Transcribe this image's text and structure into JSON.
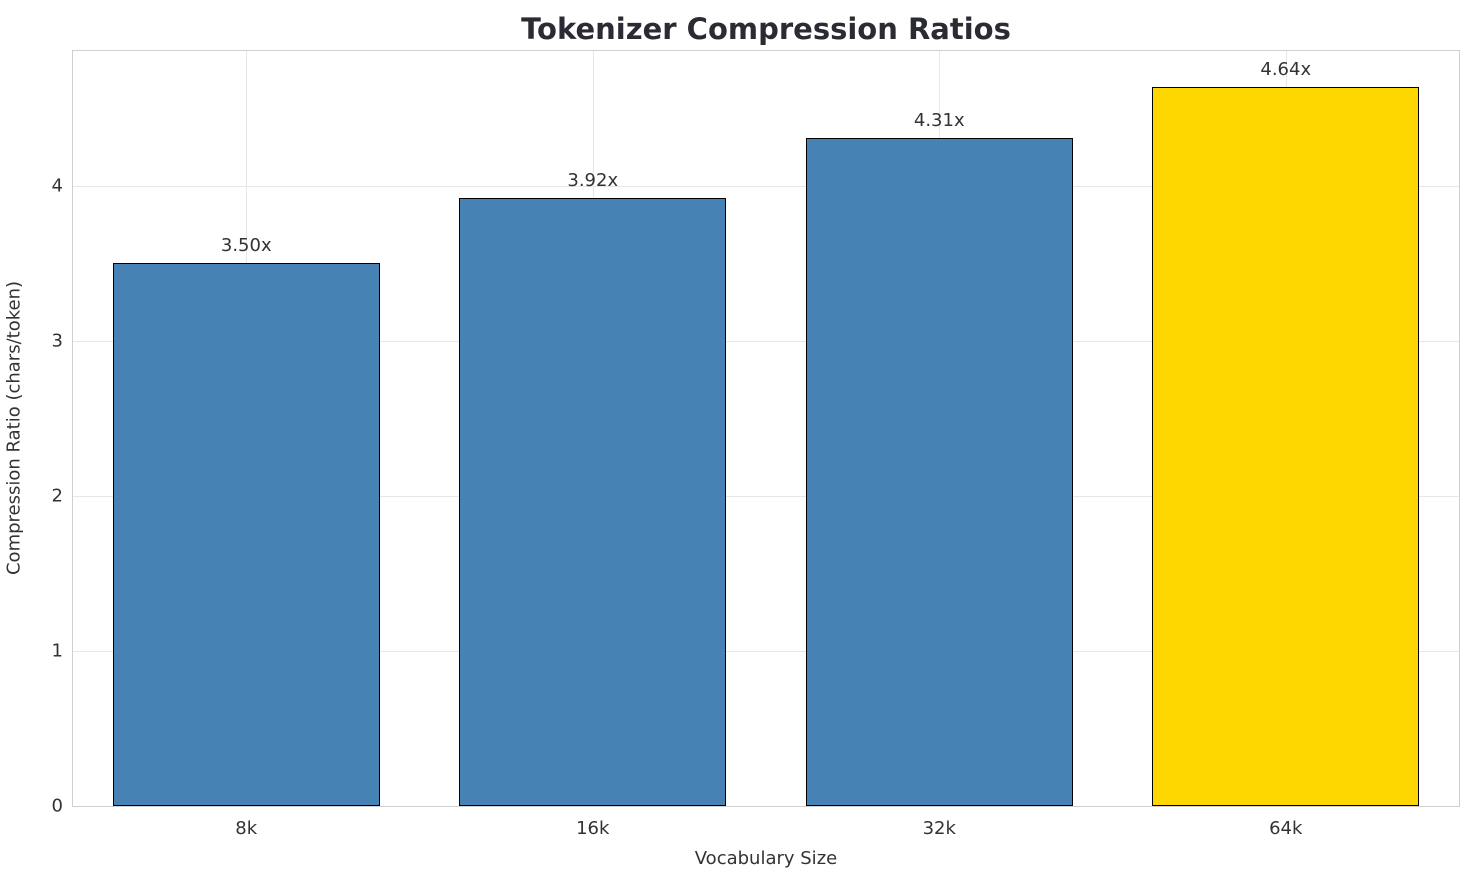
{
  "chart": {
    "title": "Tokenizer Compression Ratios",
    "xlabel": "Vocabulary Size",
    "ylabel": "Compression Ratio (chars/token)"
  },
  "chart_data": {
    "type": "bar",
    "title": "Tokenizer Compression Ratios",
    "xlabel": "Vocabulary Size",
    "ylabel": "Compression Ratio (chars/token)",
    "categories": [
      "8k",
      "16k",
      "32k",
      "64k"
    ],
    "values": [
      3.5,
      3.92,
      4.31,
      4.64
    ],
    "value_labels": [
      "3.50x",
      "3.92x",
      "4.31x",
      "4.64x"
    ],
    "yticks": [
      0,
      1,
      2,
      3,
      4
    ],
    "ylim": [
      0,
      4.87
    ],
    "bar_colors": [
      "#4682b4",
      "#4682b4",
      "#4682b4",
      "#ffd700"
    ],
    "edge_color": "#000000",
    "grid": true,
    "bar_width_fraction": 0.77
  }
}
